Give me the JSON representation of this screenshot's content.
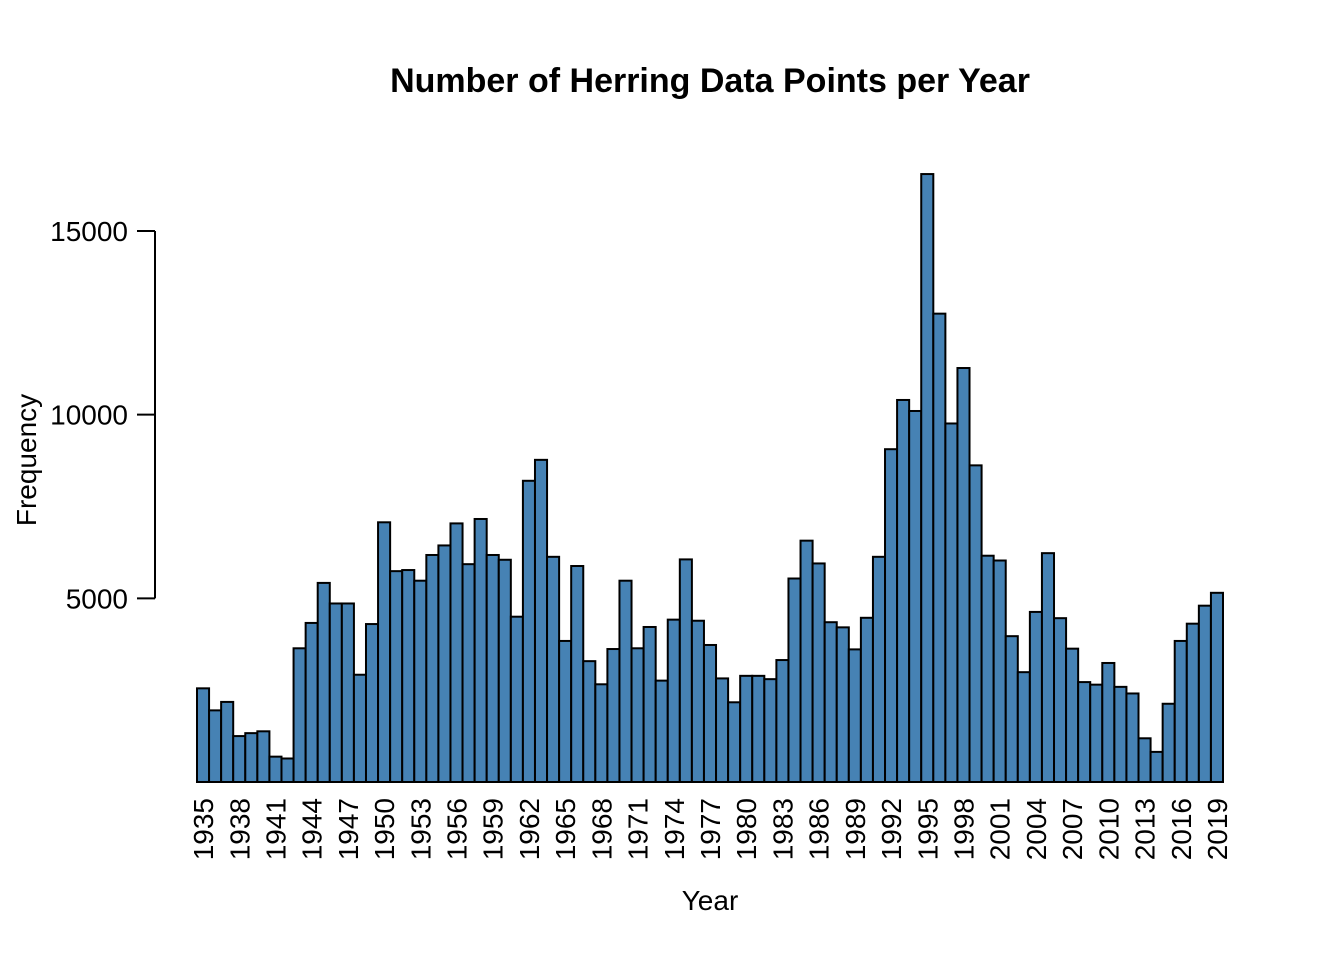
{
  "chart_data": {
    "type": "bar",
    "title": "Number of Herring Data Points per Year",
    "xlabel": "Year",
    "ylabel": "Frequency",
    "ylim": [
      0,
      16500
    ],
    "y_ticks": [
      5000,
      10000,
      15000
    ],
    "x_tick_labels": [
      "1935",
      "1938",
      "1941",
      "1944",
      "1947",
      "1950",
      "1953",
      "1956",
      "1959",
      "1962",
      "1965",
      "1968",
      "1971",
      "1974",
      "1977",
      "1980",
      "1983",
      "1986",
      "1989",
      "1992",
      "1995",
      "1998",
      "2001",
      "2004",
      "2007",
      "2010",
      "2013",
      "2016",
      "2019"
    ],
    "bar_color": "#4682b4",
    "grid": false,
    "categories": [
      "1935",
      "1936",
      "1937",
      "1938",
      "1939",
      "1940",
      "1941",
      "1942",
      "1943",
      "1944",
      "1945",
      "1946",
      "1947",
      "1948",
      "1949",
      "1950",
      "1951",
      "1952",
      "1953",
      "1954",
      "1955",
      "1956",
      "1957",
      "1958",
      "1959",
      "1960",
      "1961",
      "1962",
      "1963",
      "1964",
      "1965",
      "1966",
      "1967",
      "1968",
      "1969",
      "1970",
      "1971",
      "1972",
      "1973",
      "1974",
      "1975",
      "1976",
      "1977",
      "1978",
      "1979",
      "1980",
      "1981",
      "1982",
      "1983",
      "1984",
      "1985",
      "1986",
      "1987",
      "1988",
      "1989",
      "1990",
      "1991",
      "1992",
      "1993",
      "1994",
      "1995",
      "1996",
      "1997",
      "1998",
      "1999",
      "2000",
      "2001",
      "2002",
      "2003",
      "2004",
      "2005",
      "2006",
      "2007",
      "2008",
      "2009",
      "2010",
      "2011",
      "2012",
      "2013",
      "2014",
      "2015",
      "2016",
      "2017",
      "2018",
      "2019"
    ],
    "values": [
      2550,
      1950,
      2180,
      1250,
      1330,
      1380,
      690,
      640,
      3640,
      4330,
      5420,
      4860,
      4860,
      2920,
      4300,
      7070,
      5740,
      5770,
      5480,
      6180,
      6440,
      7040,
      5930,
      7160,
      6180,
      6050,
      4500,
      8200,
      8770,
      6130,
      3840,
      5880,
      3290,
      2660,
      3620,
      5480,
      3640,
      4220,
      2760,
      4420,
      6060,
      4390,
      3730,
      2820,
      2170,
      2890,
      2890,
      2800,
      3320,
      5540,
      6570,
      5950,
      4350,
      4210,
      3610,
      4470,
      6130,
      9060,
      10400,
      10100,
      16550,
      12750,
      9760,
      11270,
      8620,
      6160,
      6030,
      3970,
      2990,
      4630,
      6230,
      4460,
      3630,
      2720,
      2650,
      3240,
      2590,
      2410,
      1190,
      820,
      2130,
      3840,
      4310,
      4800,
      5150
    ]
  }
}
